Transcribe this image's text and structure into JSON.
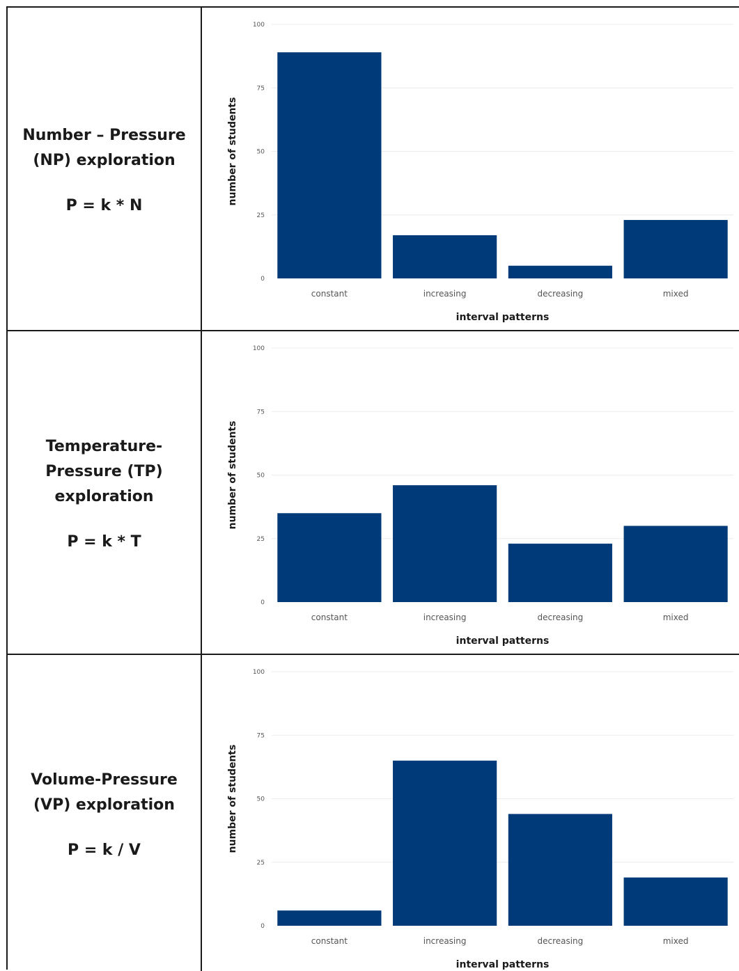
{
  "colors": {
    "bar": "#003a78",
    "grid": "#ececec",
    "border": "#1a1a1a"
  },
  "rows": [
    {
      "title": "Number – Pressure\n(NP) exploration",
      "formula": "P = k * N"
    },
    {
      "title": "Temperature-\nPressure (TP)\nexploration",
      "formula": "P = k * T"
    },
    {
      "title": "Volume-Pressure\n(VP) exploration",
      "formula": "P = k / V"
    }
  ],
  "chart_data": [
    {
      "type": "bar",
      "categories": [
        "constant",
        "increasing",
        "decreasing",
        "mixed"
      ],
      "values": [
        89,
        17,
        5,
        23
      ],
      "xlabel": "interval patterns",
      "ylabel": "number of students",
      "ylim": [
        0,
        100
      ],
      "yticks": [
        0,
        25,
        50,
        75,
        100
      ],
      "grid": true
    },
    {
      "type": "bar",
      "categories": [
        "constant",
        "increasing",
        "decreasing",
        "mixed"
      ],
      "values": [
        35,
        46,
        23,
        30
      ],
      "xlabel": "interval patterns",
      "ylabel": "number of students",
      "ylim": [
        0,
        100
      ],
      "yticks": [
        0,
        25,
        50,
        75,
        100
      ],
      "grid": true
    },
    {
      "type": "bar",
      "categories": [
        "constant",
        "increasing",
        "decreasing",
        "mixed"
      ],
      "values": [
        6,
        65,
        44,
        19
      ],
      "xlabel": "interval patterns",
      "ylabel": "number of students",
      "ylim": [
        0,
        100
      ],
      "yticks": [
        0,
        25,
        50,
        75,
        100
      ],
      "grid": true
    }
  ]
}
